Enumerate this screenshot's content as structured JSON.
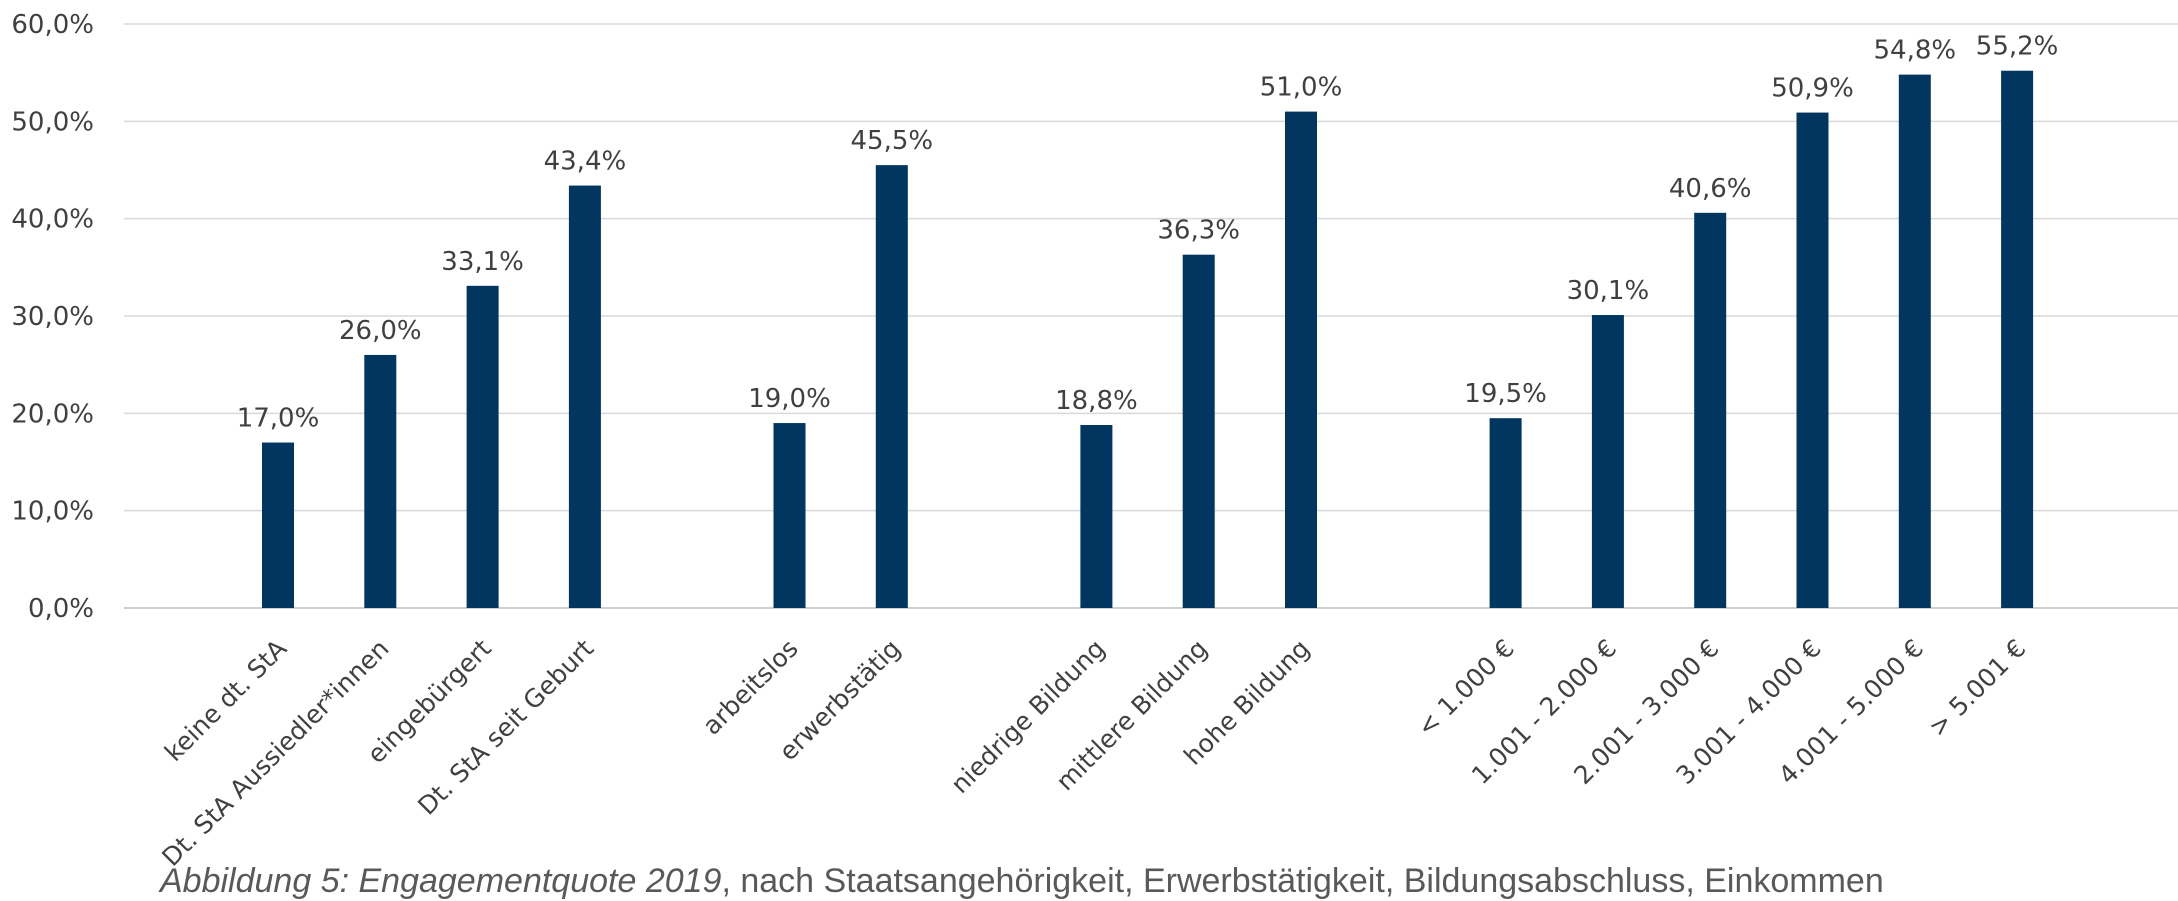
{
  "chart_data": {
    "type": "bar",
    "title": "",
    "xlabel": "",
    "ylabel": "",
    "ylim": [
      0,
      60
    ],
    "yticks": [
      "0,0%",
      "10,0%",
      "20,0%",
      "30,0%",
      "40,0%",
      "50,0%",
      "60,0%"
    ],
    "grid": true,
    "bar_color": "#003660",
    "groups": [
      {
        "categories": [
          "keine dt. StA",
          "Dt. StA Aussiedler*innen",
          "eingebürgert",
          "Dt. StA seit Geburt"
        ],
        "values": [
          17.0,
          26.0,
          33.1,
          43.4
        ],
        "labels": [
          "17,0%",
          "26,0%",
          "33,1%",
          "43,4%"
        ]
      },
      {
        "categories": [
          "arbeitslos",
          "erwerbstätig"
        ],
        "values": [
          19.0,
          45.5
        ],
        "labels": [
          "19,0%",
          "45,5%"
        ]
      },
      {
        "categories": [
          "niedrige Bildung",
          "mittlere Bildung",
          "hohe Bildung"
        ],
        "values": [
          18.8,
          36.3,
          51.0
        ],
        "labels": [
          "18,8%",
          "36,3%",
          "51,0%"
        ]
      },
      {
        "categories": [
          "< 1.000 €",
          "1.001 - 2.000 €",
          "2.001 - 3.000 €",
          "3.001 - 4.000 €",
          "4.001 - 5.000 €",
          "> 5.001 €"
        ],
        "values": [
          19.5,
          30.1,
          40.6,
          50.9,
          54.8,
          55.2
        ],
        "labels": [
          "19,5%",
          "30,1%",
          "40,6%",
          "50,9%",
          "54,8%",
          "55,2%"
        ]
      }
    ]
  },
  "caption": {
    "italic": "Abbildung 5: Engagementquote 2019",
    "rest": ", nach Staatsangehörigkeit, Erwerbstätigkeit, Bildungsabschluss, Einkommen"
  }
}
